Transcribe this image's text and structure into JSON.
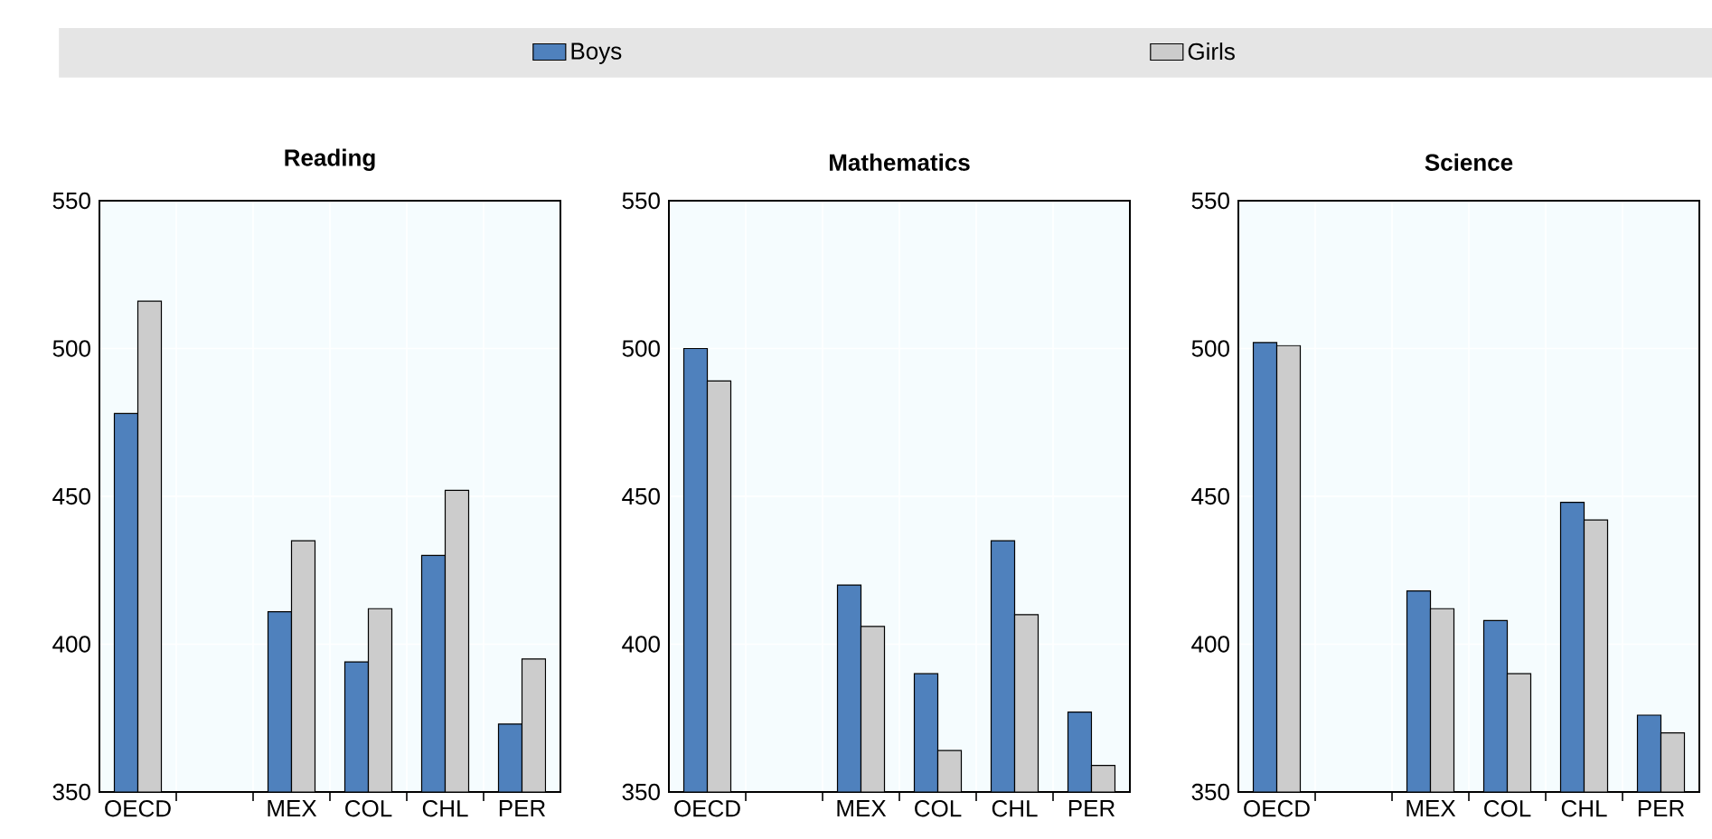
{
  "chart_data": [
    {
      "type": "bar",
      "title": "Reading",
      "categories": [
        "OECD",
        null,
        "MEX",
        "COL",
        "CHL",
        "PER"
      ],
      "ylim": [
        350,
        550
      ],
      "yticks": [
        350,
        400,
        450,
        500,
        550
      ],
      "grid": true,
      "legend": "top",
      "series": [
        {
          "name": "Boys",
          "color": "#4f81bd",
          "values": [
            478,
            null,
            411,
            394,
            430,
            373
          ]
        },
        {
          "name": "Girls",
          "color": "#cccccc",
          "values": [
            516,
            null,
            435,
            412,
            452,
            395
          ]
        }
      ]
    },
    {
      "type": "bar",
      "title": "Mathematics",
      "categories": [
        "OECD",
        null,
        "MEX",
        "COL",
        "CHL",
        "PER"
      ],
      "ylim": [
        350,
        550
      ],
      "yticks": [
        350,
        400,
        450,
        500,
        550
      ],
      "grid": true,
      "series": [
        {
          "color": "#4f81bd",
          "values": [
            500,
            null,
            420,
            390,
            435,
            377
          ]
        },
        {
          "color": "#cccccc",
          "values": [
            489,
            null,
            406,
            364,
            410,
            359
          ]
        }
      ]
    },
    {
      "type": "bar",
      "title": "Science",
      "categories": [
        "OECD",
        null,
        "MEX",
        "COL",
        "CHL",
        "PER"
      ],
      "ylim": [
        350,
        550
      ],
      "yticks": [
        350,
        400,
        450,
        500,
        550
      ],
      "grid": true,
      "series": [
        {
          "color": "#4f81bd",
          "values": [
            502,
            null,
            418,
            408,
            448,
            376
          ]
        },
        {
          "color": "#cccccc",
          "values": [
            501,
            null,
            412,
            390,
            442,
            370
          ]
        }
      ]
    }
  ]
}
